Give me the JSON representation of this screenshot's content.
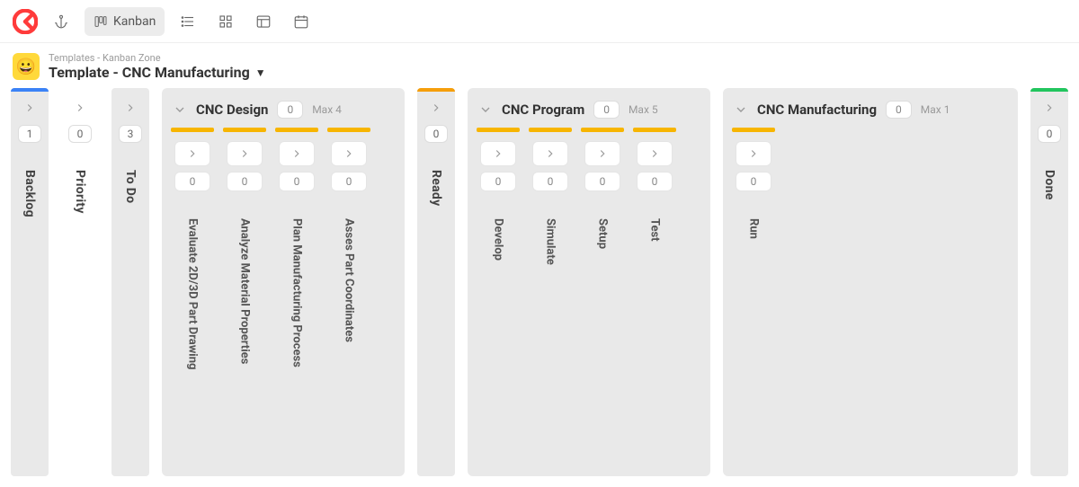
{
  "colors": {
    "blue": "#3b82f6",
    "orange": "#f59e0b",
    "yellow": "#f7b500",
    "green": "#22c55e",
    "grey_bg": "#e9e9e9",
    "logo_red": "#ff3b3b"
  },
  "toolbar": {
    "view_label": "Kanban"
  },
  "breadcrumb": "Templates - Kanban Zone",
  "board_title": "Template - CNC Manufacturing",
  "columns": {
    "backlog": {
      "label": "Backlog",
      "count": "1",
      "stripe": "#3b82f6"
    },
    "priority": {
      "label": "Priority",
      "count": "0",
      "stripe": null
    },
    "todo": {
      "label": "To Do",
      "count": "3",
      "stripe": null
    },
    "ready": {
      "label": "Ready",
      "count": "0",
      "stripe": "#f59e0b"
    },
    "done": {
      "label": "Done",
      "count": "0",
      "stripe": "#22c55e"
    }
  },
  "groups": {
    "design": {
      "name": "CNC Design",
      "count": "0",
      "max": "Max 4",
      "bar_color": "#f7b500",
      "sub": [
        {
          "label": "Evaluate 2D/3D Part Drawing",
          "count": "0"
        },
        {
          "label": "Analyze Material Properties",
          "count": "0"
        },
        {
          "label": "Plan Manufacturing Process",
          "count": "0"
        },
        {
          "label": "Asses Part Coordinates",
          "count": "0"
        }
      ]
    },
    "program": {
      "name": "CNC Program",
      "count": "0",
      "max": "Max 5",
      "bar_color": "#f7b500",
      "sub": [
        {
          "label": "Develop",
          "count": "0"
        },
        {
          "label": "Simulate",
          "count": "0"
        },
        {
          "label": "Setup",
          "count": "0"
        },
        {
          "label": "Test",
          "count": "0"
        }
      ]
    },
    "mfg": {
      "name": "CNC Manufacturing",
      "count": "0",
      "max": "Max 1",
      "bar_color": "#f7b500",
      "sub": [
        {
          "label": "Run",
          "count": "0"
        }
      ]
    }
  }
}
